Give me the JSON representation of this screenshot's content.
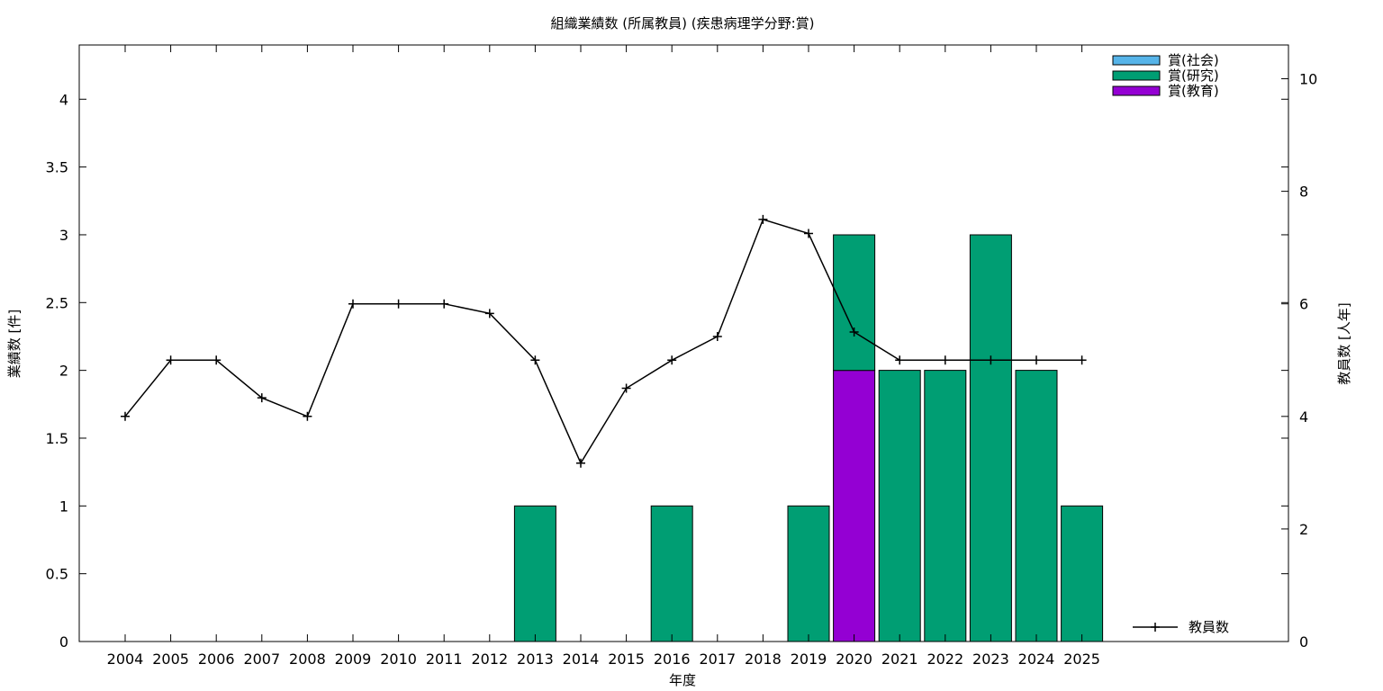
{
  "chart_data": {
    "type": "bar",
    "title": "組織業績数 (所属教員) (疾患病理学分野:賞)",
    "xlabel": "年度",
    "ylabel": "業績数 [件]",
    "y2label": "教員数 [人年]",
    "ylim": [
      0,
      4.4
    ],
    "y2lim": [
      0,
      10.6
    ],
    "yticks": [
      "0",
      "0.5",
      "1",
      "1.5",
      "2",
      "2.5",
      "3",
      "3.5",
      "4"
    ],
    "y2ticks": [
      "0",
      "2",
      "4",
      "6",
      "8",
      "10"
    ],
    "categories": [
      "2004",
      "2005",
      "2006",
      "2007",
      "2008",
      "2009",
      "2010",
      "2011",
      "2012",
      "2013",
      "2014",
      "2015",
      "2016",
      "2017",
      "2018",
      "2019",
      "2020",
      "2021",
      "2022",
      "2023",
      "2024",
      "2025"
    ],
    "stacked_series": [
      {
        "name": "賞(教育)",
        "color": "#9400d3",
        "values": [
          0,
          0,
          0,
          0,
          0,
          0,
          0,
          0,
          0,
          0,
          0,
          0,
          0,
          0,
          0,
          0,
          2,
          0,
          0,
          0,
          0,
          0
        ]
      },
      {
        "name": "賞(研究)",
        "color": "#009e73",
        "values": [
          0,
          0,
          0,
          0,
          0,
          0,
          0,
          0,
          0,
          1,
          0,
          0,
          1,
          0,
          0,
          1,
          1,
          2,
          2,
          3,
          2,
          1
        ]
      },
      {
        "name": "賞(社会)",
        "color": "#56b4e9",
        "values": [
          0,
          0,
          0,
          0,
          0,
          0,
          0,
          0,
          0,
          0,
          0,
          0,
          0,
          0,
          0,
          0,
          0,
          0,
          0,
          0,
          0,
          0
        ]
      }
    ],
    "legend_order": [
      "賞(社会)",
      "賞(研究)",
      "賞(教育)"
    ],
    "line_series": {
      "name": "教員数",
      "color": "#000000",
      "axis": "right",
      "values": [
        4.0,
        5.0,
        5.0,
        4.33,
        4.0,
        6.0,
        6.0,
        6.0,
        5.83,
        5.0,
        3.17,
        4.5,
        5.0,
        5.42,
        7.5,
        7.25,
        5.5,
        5.0,
        5.0,
        5.0,
        5.0,
        5.0
      ]
    },
    "legend_placement": "top-right (bars), bottom-right (line)",
    "grid": false
  }
}
